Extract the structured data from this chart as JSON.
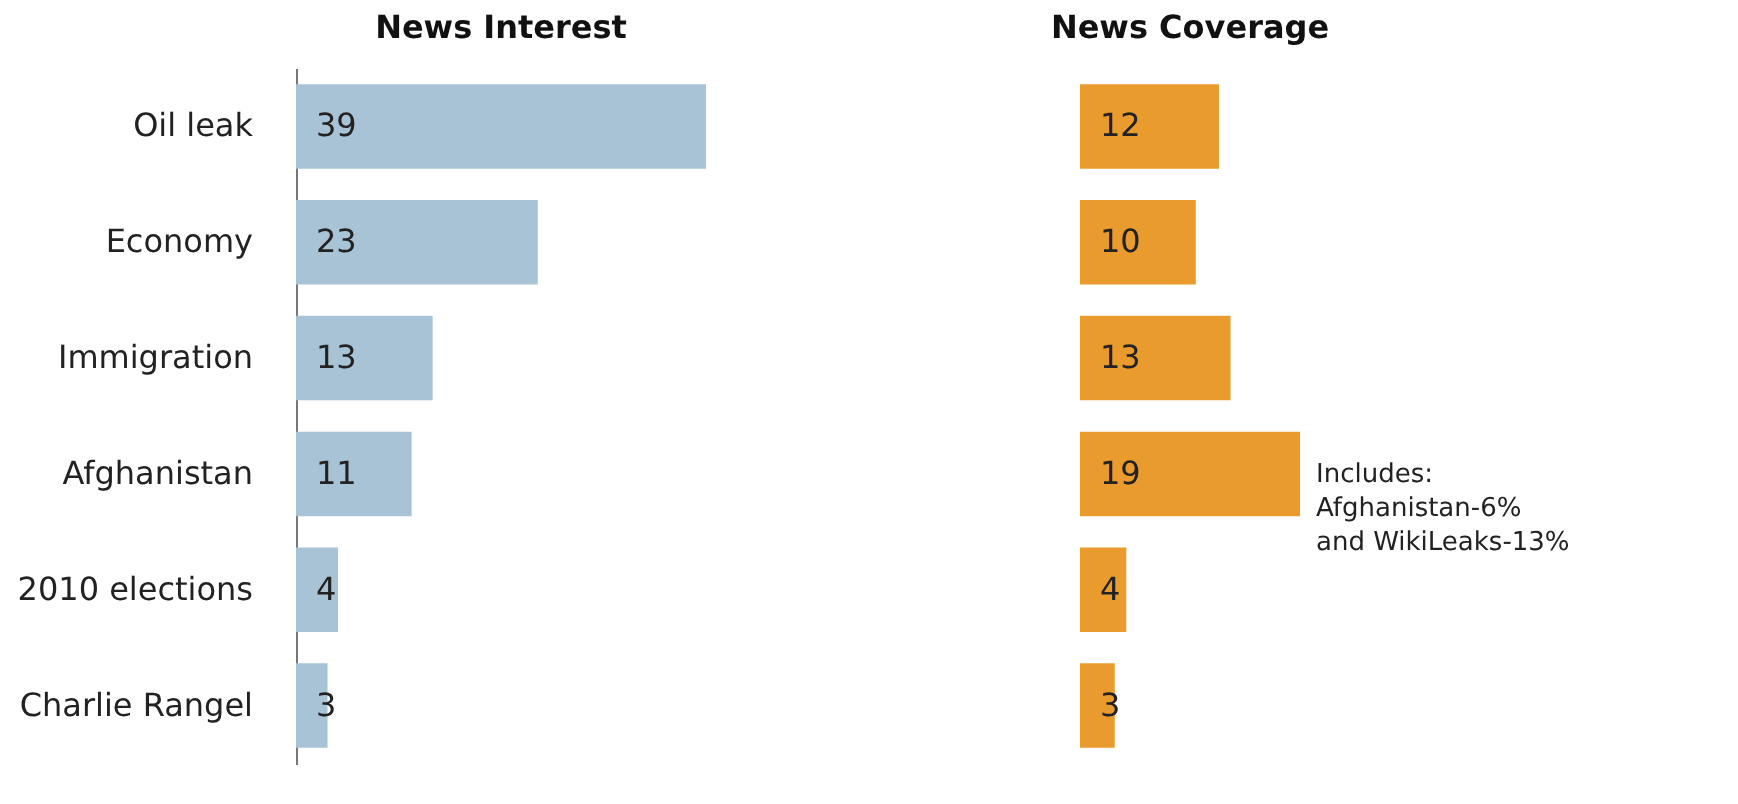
{
  "chart_data": [
    {
      "type": "bar",
      "orientation": "horizontal",
      "title": "News Interest",
      "categories": [
        "Oil leak",
        "Economy",
        "Immigration",
        "Afghanistan",
        "2010 elections",
        "Charlie Rangel"
      ],
      "values": [
        39,
        23,
        13,
        11,
        4,
        3
      ],
      "color": "#a9c3d6",
      "data_labels": true,
      "tick_labels": "y"
    },
    {
      "type": "bar",
      "orientation": "horizontal",
      "title": "News Coverage",
      "categories": [
        "Oil leak",
        "Economy",
        "Immigration",
        "Afghanistan",
        "2010 elections",
        "Charlie Rangel"
      ],
      "values": [
        12,
        10,
        13,
        19,
        4,
        3
      ],
      "color": "#e99c2d",
      "data_labels": true,
      "tick_labels": false,
      "annotations": [
        {
          "text": "Includes:\nAfghanistan-6%\nand WikiLeaks-13%",
          "x": 19,
          "y": "Afghanistan"
        }
      ]
    }
  ]
}
